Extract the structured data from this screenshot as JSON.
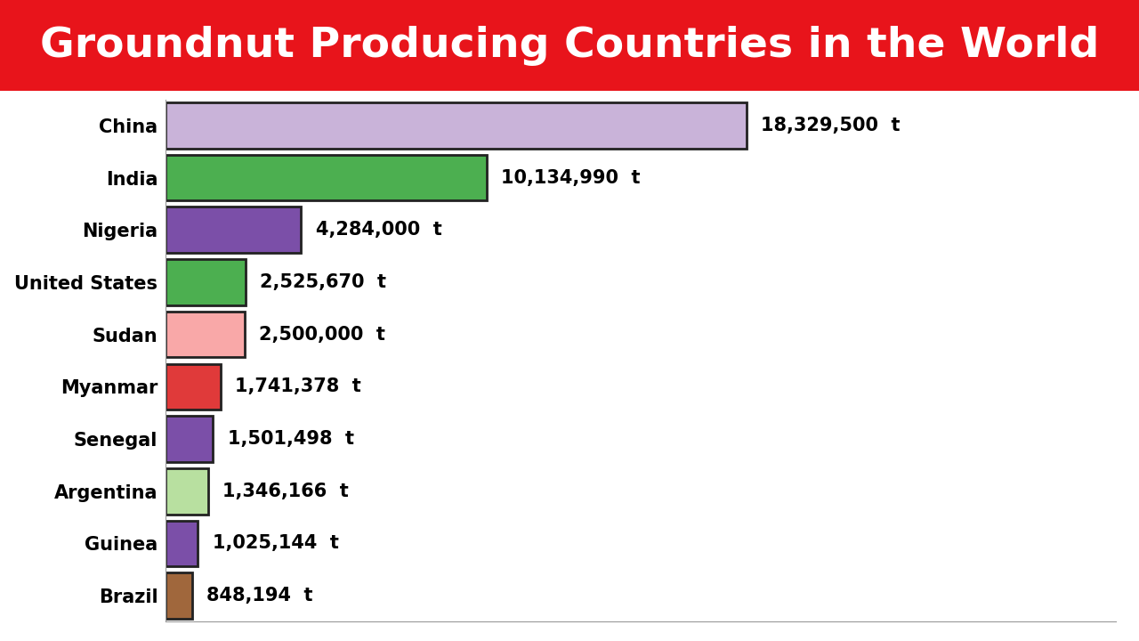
{
  "chart_data": {
    "type": "bar",
    "orientation": "horizontal",
    "title": "Groundnut Producing Countries in the World",
    "categories": [
      "China",
      "India",
      "Nigeria",
      "United States",
      "Sudan",
      "Myanmar",
      "Senegal",
      "Argentina",
      "Guinea",
      "Brazil"
    ],
    "values": [
      18329500,
      10134990,
      4284000,
      2525670,
      2500000,
      1741378,
      1501498,
      1346166,
      1025144,
      848194
    ],
    "value_labels": [
      "18,329,500  t",
      "10,134,990  t",
      "4,284,000  t",
      "2,525,670  t",
      "2,500,000  t",
      "1,741,378  t",
      "1,501,498  t",
      "1,346,166  t",
      "1,025,144  t",
      "848,194  t"
    ],
    "colors": [
      "#c9b3d9",
      "#4caf50",
      "#7b4fa8",
      "#4caf50",
      "#f9a8a8",
      "#e03a3a",
      "#7b4fa8",
      "#b8e0a0",
      "#7b4fa8",
      "#a0673c"
    ],
    "xlim": [
      0,
      30000000
    ],
    "xticks": [],
    "data_labels": true,
    "tick_labels": "y",
    "grid": false
  }
}
